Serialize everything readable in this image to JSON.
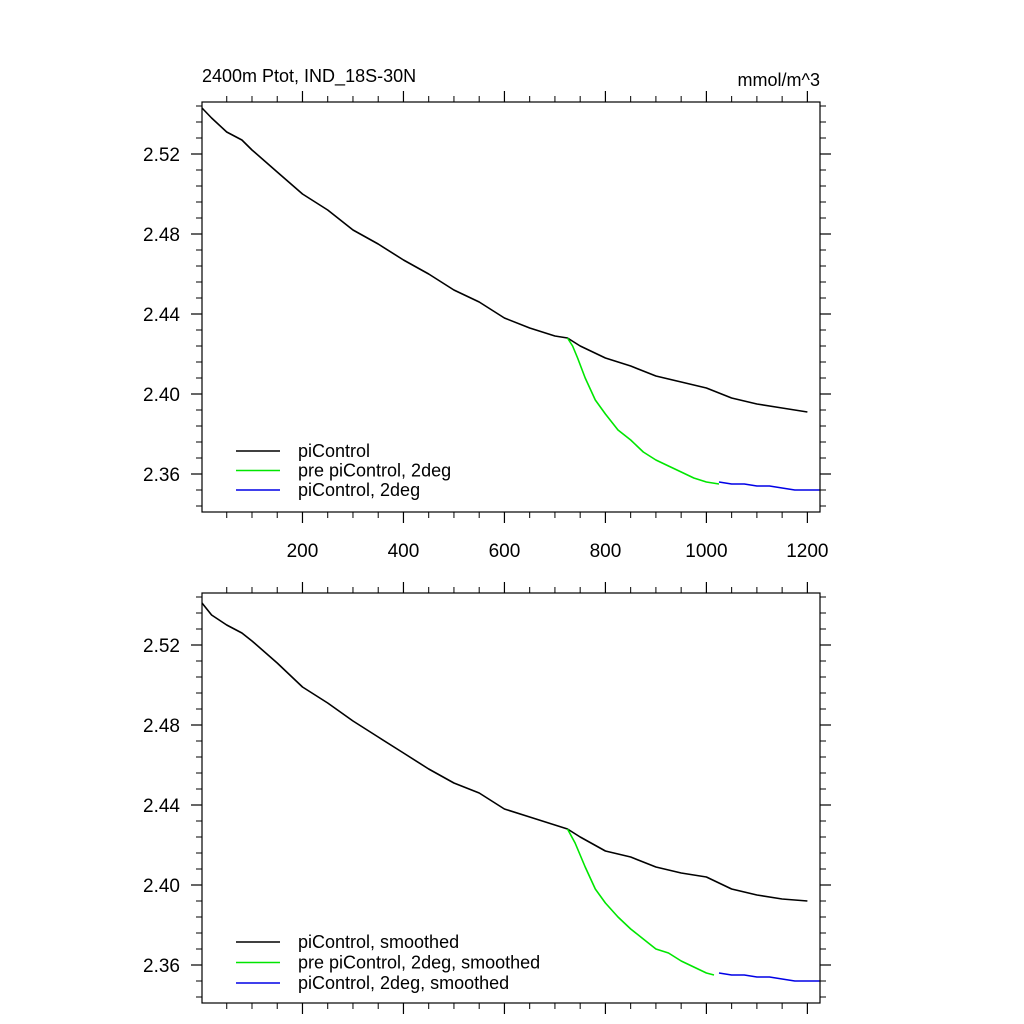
{
  "chart_data": [
    {
      "type": "line",
      "title": "2400m Ptot, IND_18S-30N",
      "units": "mmol/m^3",
      "xlim": [
        1,
        1225
      ],
      "ylim": [
        2.341,
        2.546
      ],
      "xticks": [
        200,
        400,
        600,
        800,
        1000,
        1200
      ],
      "yticks": [
        2.36,
        2.4,
        2.44,
        2.48,
        2.52
      ],
      "xtick_labels": [
        "200",
        "400",
        "600",
        "800",
        "1000",
        "1200"
      ],
      "ytick_labels": [
        "2.36",
        "2.40",
        "2.44",
        "2.48",
        "2.52"
      ],
      "legend_position": "bottom-left",
      "series": [
        {
          "name": "piControl",
          "color": "#000000",
          "x": [
            1,
            20,
            50,
            80,
            100,
            150,
            200,
            250,
            300,
            350,
            400,
            450,
            500,
            550,
            600,
            650,
            700,
            725,
            750,
            800,
            850,
            900,
            950,
            1000,
            1050,
            1100,
            1150,
            1200
          ],
          "y": [
            2.543,
            2.538,
            2.531,
            2.527,
            2.522,
            2.511,
            2.5,
            2.492,
            2.482,
            2.475,
            2.467,
            2.46,
            2.452,
            2.446,
            2.438,
            2.433,
            2.429,
            2.428,
            2.424,
            2.418,
            2.414,
            2.409,
            2.406,
            2.403,
            2.398,
            2.395,
            2.393,
            2.391
          ]
        },
        {
          "name": "pre piControl, 2deg",
          "color": "#00e600",
          "x": [
            725,
            735,
            745,
            760,
            780,
            800,
            825,
            850,
            875,
            900,
            925,
            950,
            975,
            1000,
            1025
          ],
          "y": [
            2.428,
            2.424,
            2.418,
            2.408,
            2.397,
            2.39,
            2.382,
            2.377,
            2.371,
            2.367,
            2.364,
            2.361,
            2.358,
            2.356,
            2.355
          ]
        },
        {
          "name": "piControl, 2deg",
          "color": "#0000e6",
          "x": [
            1025,
            1050,
            1075,
            1100,
            1125,
            1150,
            1175,
            1200,
            1225
          ],
          "y": [
            2.356,
            2.355,
            2.355,
            2.354,
            2.354,
            2.353,
            2.352,
            2.352,
            2.352
          ]
        }
      ]
    },
    {
      "type": "line",
      "title": "",
      "units": "",
      "xlim": [
        1,
        1225
      ],
      "ylim": [
        2.341,
        2.546
      ],
      "xticks": [
        200,
        400,
        600,
        800,
        1000,
        1200
      ],
      "yticks": [
        2.36,
        2.4,
        2.44,
        2.48,
        2.52
      ],
      "xtick_labels": [],
      "ytick_labels": [
        "2.36",
        "2.40",
        "2.44",
        "2.48",
        "2.52"
      ],
      "legend_position": "bottom-left",
      "series": [
        {
          "name": "piControl, smoothed",
          "color": "#000000",
          "x": [
            1,
            20,
            50,
            80,
            100,
            150,
            200,
            250,
            300,
            350,
            400,
            450,
            500,
            550,
            600,
            650,
            700,
            725,
            750,
            800,
            850,
            900,
            950,
            1000,
            1050,
            1100,
            1150,
            1200
          ],
          "y": [
            2.541,
            2.535,
            2.53,
            2.526,
            2.522,
            2.511,
            2.499,
            2.491,
            2.482,
            2.474,
            2.466,
            2.458,
            2.451,
            2.446,
            2.438,
            2.434,
            2.43,
            2.428,
            2.424,
            2.417,
            2.414,
            2.409,
            2.406,
            2.404,
            2.398,
            2.395,
            2.393,
            2.392
          ]
        },
        {
          "name": "pre piControl, 2deg, smoothed",
          "color": "#00e600",
          "x": [
            725,
            740,
            760,
            780,
            800,
            825,
            850,
            875,
            900,
            925,
            950,
            975,
            1000,
            1015
          ],
          "y": [
            2.428,
            2.421,
            2.409,
            2.398,
            2.391,
            2.384,
            2.378,
            2.373,
            2.368,
            2.366,
            2.362,
            2.359,
            2.356,
            2.355
          ]
        },
        {
          "name": "piControl, 2deg, smoothed",
          "color": "#0000e6",
          "x": [
            1025,
            1050,
            1075,
            1100,
            1125,
            1150,
            1175,
            1200,
            1225
          ],
          "y": [
            2.356,
            2.355,
            2.355,
            2.354,
            2.354,
            2.353,
            2.352,
            2.352,
            2.352
          ]
        }
      ]
    }
  ]
}
